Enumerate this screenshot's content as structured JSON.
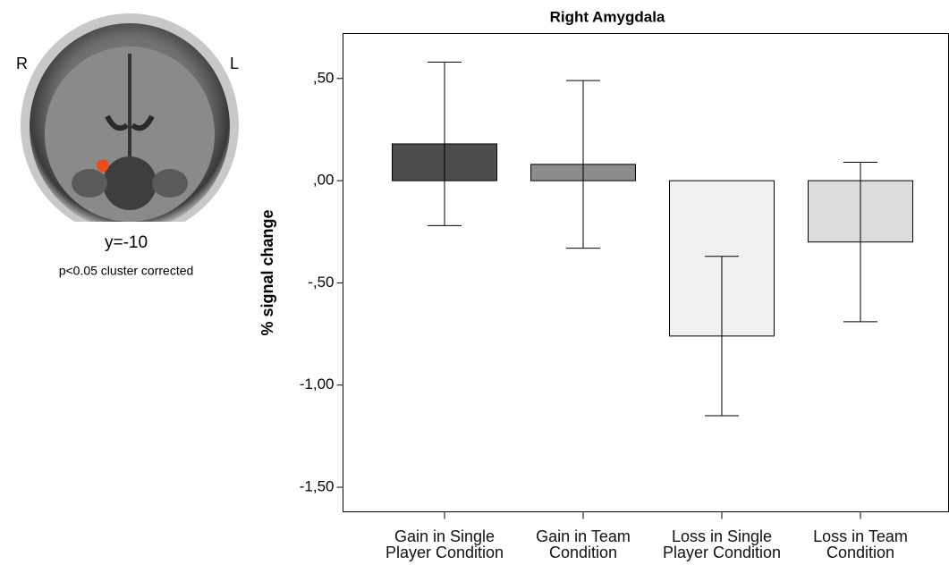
{
  "chart_data": {
    "type": "bar",
    "title": "Right Amygdala",
    "y_label": "% signal change",
    "categories": [
      "Gain in Single Player Condition",
      "Gain in Team Condition",
      "Loss in Single Player Condition",
      "Loss in Team Condition"
    ],
    "values": [
      0.18,
      0.08,
      -0.76,
      -0.3
    ],
    "errors": [
      0.4,
      0.41,
      0.39,
      0.39
    ],
    "colors": [
      "#4d4d4d",
      "#8c8c8c",
      "#f0f0f0",
      "#dcdcdc"
    ],
    "ylim": [
      -1.62,
      0.72
    ],
    "yticks": [
      {
        "value": 0.5,
        "label": ",50"
      },
      {
        "value": 0,
        "label": ",00"
      },
      {
        "value": -0.5,
        "label": "-,50"
      },
      {
        "value": -1,
        "label": "-1,00"
      },
      {
        "value": -1.5,
        "label": "-1,50"
      }
    ],
    "grid": false
  },
  "brain_panel": {
    "right_label": "R",
    "left_label": "L",
    "slice": "y=-10",
    "note": "p<0.05 cluster  corrected"
  }
}
